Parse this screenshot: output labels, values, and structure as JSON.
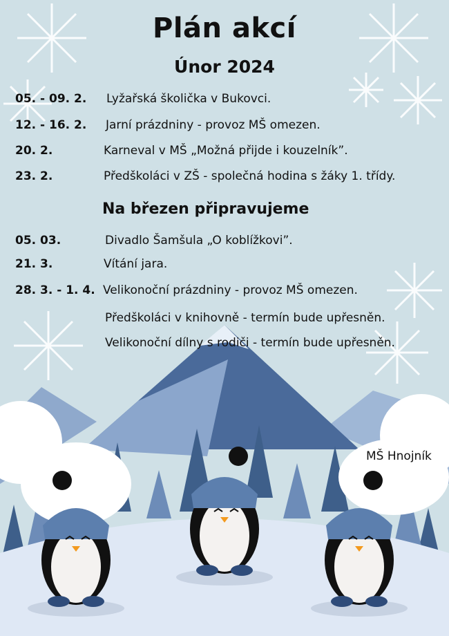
{
  "header": {
    "title": "Plán akcí",
    "subtitle": "Únor 2024"
  },
  "february": [
    {
      "date": "05. - 09. 2.",
      "text": "Lyžařská školička v Bukovci."
    },
    {
      "date": "12. - 16. 2.",
      "text": "Jarní prázdniny - provoz MŠ omezen."
    },
    {
      "date": "20. 2.",
      "text": "Karneval v MŠ „Možná přijde i kouzelník”."
    },
    {
      "date": "23. 2.",
      "text": "Předškoláci v ZŠ - společná hodina s žáky 1. třídy."
    }
  ],
  "march": {
    "heading": "Na březen připravujeme",
    "items": [
      {
        "date": "05. 03.",
        "text": "Divadlo Šamšula „O koblížkovi”."
      },
      {
        "date": "21. 3.",
        "text": "Vítání jara."
      },
      {
        "date": "28. 3. - 1. 4.",
        "text": "Velikonoční prázdniny - provoz MŠ omezen."
      },
      {
        "date": "",
        "text": "Předškoláci v knihovně - termín bude upřesněn."
      },
      {
        "date": "",
        "text": "Velikonoční dílny s rodiči - termín bude upřesněn."
      }
    ]
  },
  "footer": {
    "signature": "MŠ Hnojník"
  },
  "colors": {
    "background": "#cfe0e6",
    "mountain": "#4a6a9a",
    "snow": "#ffffff",
    "tree": "#3e5f8a",
    "hat": "#5c7fae"
  }
}
